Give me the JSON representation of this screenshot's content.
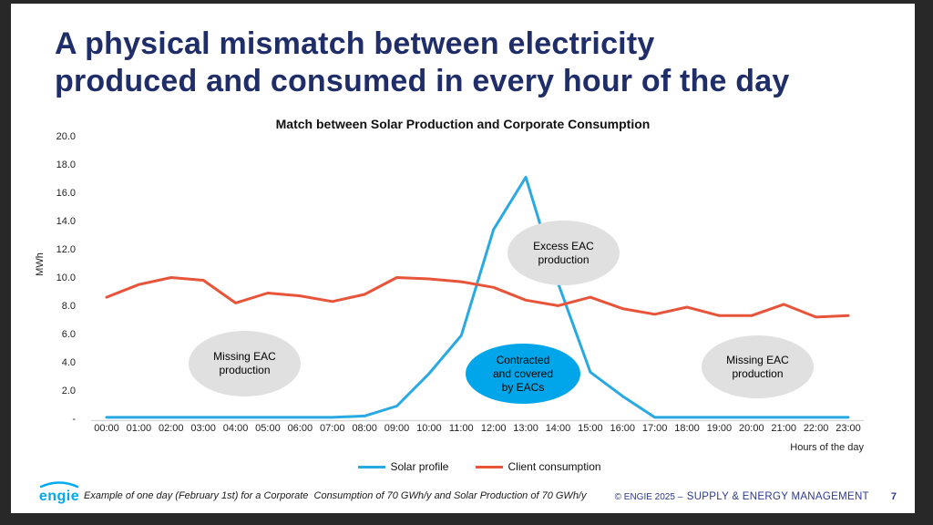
{
  "slide": {
    "title_line1": "A physical mismatch between electricity",
    "title_line2": "produced and consumed in every hour of the day",
    "footer_note": "Example of one day (February 1st) for a Corporate  Consumption of 70 GWh/y and Solar Production of 70 GWh/y",
    "copyright_prefix": "© ENGIE 2025 –",
    "copyright_main": "SUPPLY & ENERGY MANAGEMENT",
    "page_number": "7",
    "logo_text": "engie",
    "logo_color": "#00aaf0",
    "title_color": "#1f2d69",
    "frame_color": "#282828"
  },
  "chart_data": {
    "type": "line",
    "title": "Match between Solar Production and Corporate Consumption",
    "ylabel": "MWh",
    "xlabel": "Hours of the day",
    "ylim": [
      0,
      20
    ],
    "ytick_labels": [
      "-",
      "2.0",
      "4.0",
      "6.0",
      "8.0",
      "10.0",
      "12.0",
      "14.0",
      "16.0",
      "18.0",
      "20.0"
    ],
    "grid": false,
    "legend_position": "bottom",
    "x": [
      "00:00",
      "01:00",
      "02:00",
      "03:00",
      "04:00",
      "05:00",
      "06:00",
      "07:00",
      "08:00",
      "09:00",
      "10:00",
      "11:00",
      "12:00",
      "13:00",
      "14:00",
      "15:00",
      "16:00",
      "17:00",
      "18:00",
      "19:00",
      "20:00",
      "21:00",
      "22:00",
      "23:00"
    ],
    "series": [
      {
        "name": "Solar profile",
        "color": "#29a9e1",
        "values": [
          0.2,
          0.2,
          0.2,
          0.2,
          0.2,
          0.2,
          0.2,
          0.2,
          0.3,
          1.0,
          3.3,
          6.0,
          13.5,
          17.2,
          9.7,
          3.4,
          1.7,
          0.2,
          0.2,
          0.2,
          0.2,
          0.2,
          0.2,
          0.2
        ]
      },
      {
        "name": "Client consumption",
        "color": "#e8543a",
        "values": [
          8.7,
          9.6,
          10.1,
          9.9,
          8.3,
          9.0,
          8.8,
          8.4,
          8.9,
          10.1,
          10.0,
          9.8,
          9.4,
          8.5,
          8.1,
          8.7,
          7.9,
          7.5,
          8.0,
          7.4,
          7.4,
          8.2,
          7.3,
          7.4
        ]
      }
    ],
    "annotations": [
      {
        "lines": [
          "Missing EAC",
          "production"
        ],
        "fill": "#e0e0e0",
        "text_color": "#000000"
      },
      {
        "lines": [
          "Excess EAC",
          "production"
        ],
        "fill": "#e0e0e0",
        "text_color": "#000000"
      },
      {
        "lines": [
          "Contracted",
          "and covered",
          "by EACs"
        ],
        "fill": "#00a6e9",
        "text_color": "#000000"
      },
      {
        "lines": [
          "Missing EAC",
          "production"
        ],
        "fill": "#e0e0e0",
        "text_color": "#000000"
      }
    ],
    "axis_color": "#d9d9d9"
  }
}
